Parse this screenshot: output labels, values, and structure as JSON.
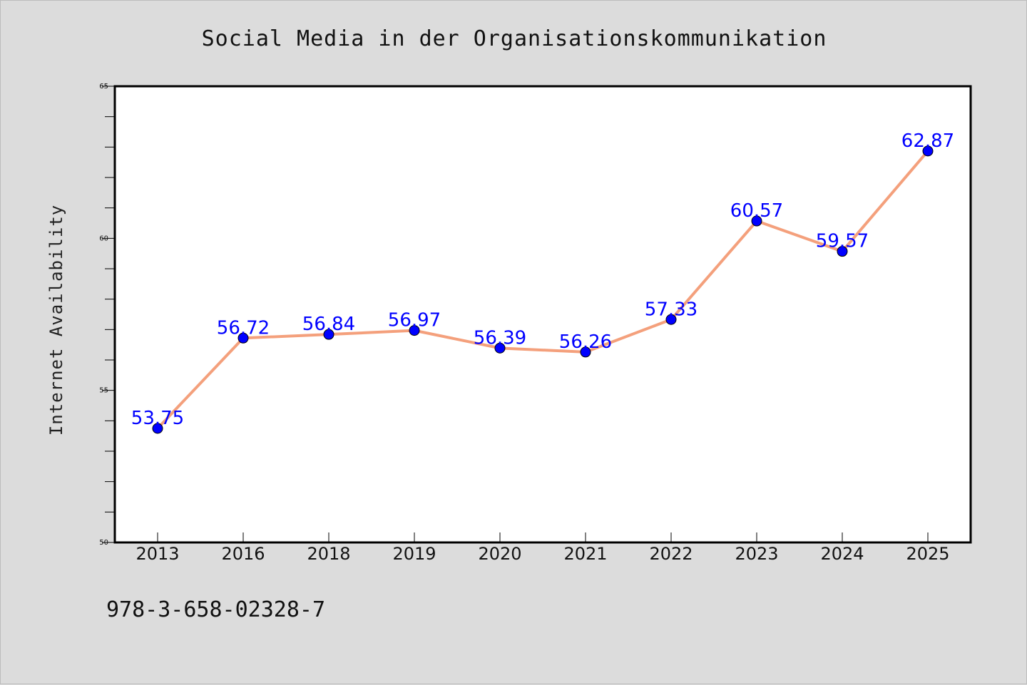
{
  "chart_data": {
    "type": "line",
    "title": "Social Media in der Organisationskommunikation",
    "xlabel": "",
    "ylabel": "Internet Availability",
    "categories": [
      "2013",
      "2016",
      "2018",
      "2019",
      "2020",
      "2021",
      "2022",
      "2023",
      "2024",
      "2025"
    ],
    "series": [
      {
        "values": [
          53.75,
          56.72,
          56.84,
          56.97,
          56.39,
          56.26,
          57.33,
          60.57,
          59.57,
          62.87
        ],
        "data_labels": [
          "53.75",
          "56.72",
          "56.84",
          "56.97",
          "56.39",
          "56.26",
          "57.33",
          "60.57",
          "59.57",
          "62.87"
        ],
        "line_color": "#f4a07c",
        "marker_color": "#0000ff"
      }
    ],
    "ylim": [
      50,
      65
    ],
    "yticks": [
      50,
      55,
      60,
      65
    ],
    "ytick_labels": [
      "50",
      "55",
      "60",
      "65"
    ],
    "grid": false,
    "legend": "none"
  },
  "footer": {
    "isbn": "978-3-658-02328-7"
  },
  "colors": {
    "background": "#dcdcdc",
    "plot_background": "#ffffff"
  }
}
